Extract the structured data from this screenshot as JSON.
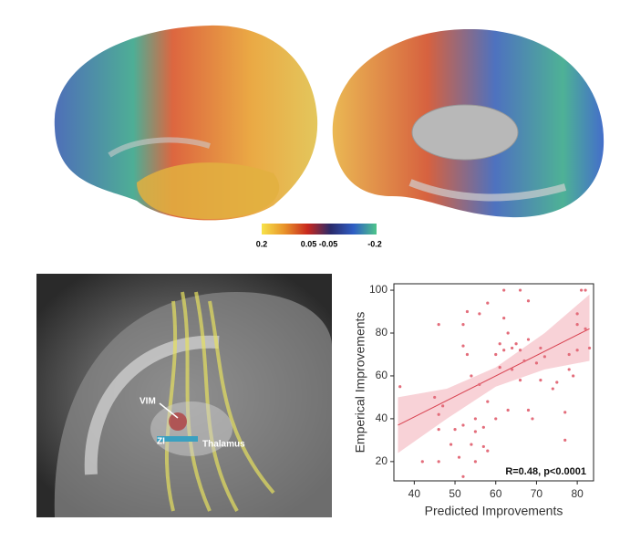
{
  "colorbar": {
    "colors": [
      "#f7e34a",
      "#e8922a",
      "#c8281e",
      "#2a2a6a",
      "#2f5ec4",
      "#4ec58a"
    ],
    "labels": [
      "0.2",
      "0.05 -0.05",
      "-0.2"
    ]
  },
  "mri_panel": {
    "labels": [
      "VIM",
      "ZI",
      "Thalamus"
    ]
  },
  "chart_data": {
    "type": "scatter",
    "x_label": "Predicted Improvements",
    "y_label": "Emperical Improvements",
    "annotation": "R=0.48, p<0.0001",
    "color": "#e36d7b",
    "fit_color": "#d8414f",
    "band_color": "#f5c3ca",
    "xlim": [
      35,
      84
    ],
    "ylim": [
      11,
      103
    ],
    "xticks": [
      40,
      50,
      60,
      70,
      80
    ],
    "yticks": [
      20,
      40,
      60,
      80,
      100
    ],
    "x": [
      36.5,
      42,
      45,
      46,
      46,
      46,
      46,
      47,
      49,
      50,
      51,
      52,
      52,
      52,
      52,
      53,
      53,
      54,
      54,
      55,
      55,
      55,
      56,
      56,
      57,
      57,
      58,
      58,
      58,
      60,
      60,
      61,
      61,
      62,
      62,
      62,
      63,
      63,
      64,
      64,
      65,
      66,
      66,
      66,
      67,
      68,
      68,
      68,
      69,
      70,
      71,
      71,
      72,
      74,
      75,
      77,
      77,
      78,
      78,
      79,
      80,
      80,
      80,
      81,
      82,
      82,
      83
    ],
    "values": [
      55,
      20,
      50,
      84,
      42,
      35,
      20,
      46,
      28,
      35,
      22,
      13,
      37,
      74,
      84,
      70,
      90,
      60,
      28,
      34,
      40,
      20,
      89,
      56,
      27,
      36,
      94,
      48,
      25,
      40,
      70,
      64,
      75,
      72,
      87,
      100,
      44,
      80,
      63,
      73,
      75,
      58,
      100,
      72,
      67,
      44,
      77,
      95,
      40,
      66,
      58,
      73,
      69,
      54,
      57,
      30,
      43,
      70,
      63,
      60,
      72,
      89,
      84,
      100,
      100,
      82,
      73
    ],
    "fit": {
      "x": [
        36,
        83
      ],
      "y": [
        37,
        82
      ]
    },
    "band": {
      "x": [
        36,
        48,
        60,
        72,
        83
      ],
      "lower": [
        24,
        40,
        55,
        63,
        67
      ],
      "upper": [
        50,
        54,
        64,
        80,
        98
      ]
    }
  }
}
